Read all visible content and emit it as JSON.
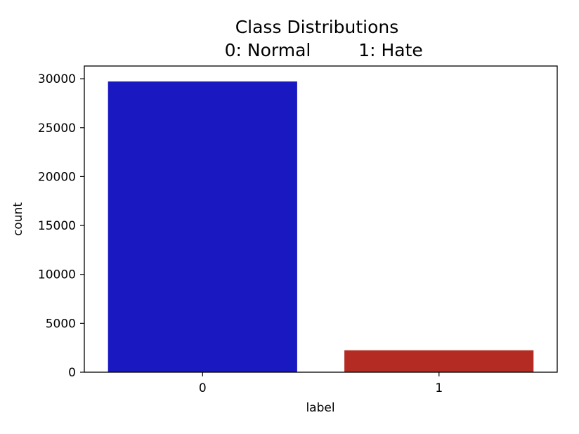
{
  "chart_data": {
    "type": "bar",
    "title": "Class Distributions",
    "subtitle_left": "0: Normal",
    "subtitle_right": "1: Hate",
    "xlabel": "label",
    "ylabel": "count",
    "categories": [
      "0",
      "1"
    ],
    "values": [
      29720,
      2242
    ],
    "colors": [
      "#1a18c0",
      "#b32b22"
    ],
    "ylim": [
      0,
      31300
    ],
    "yticks": [
      0,
      5000,
      10000,
      15000,
      20000,
      25000,
      30000
    ],
    "ytick_labels": [
      "0",
      "5000",
      "10000",
      "15000",
      "20000",
      "25000",
      "30000"
    ],
    "grid": false,
    "legend": "none"
  }
}
